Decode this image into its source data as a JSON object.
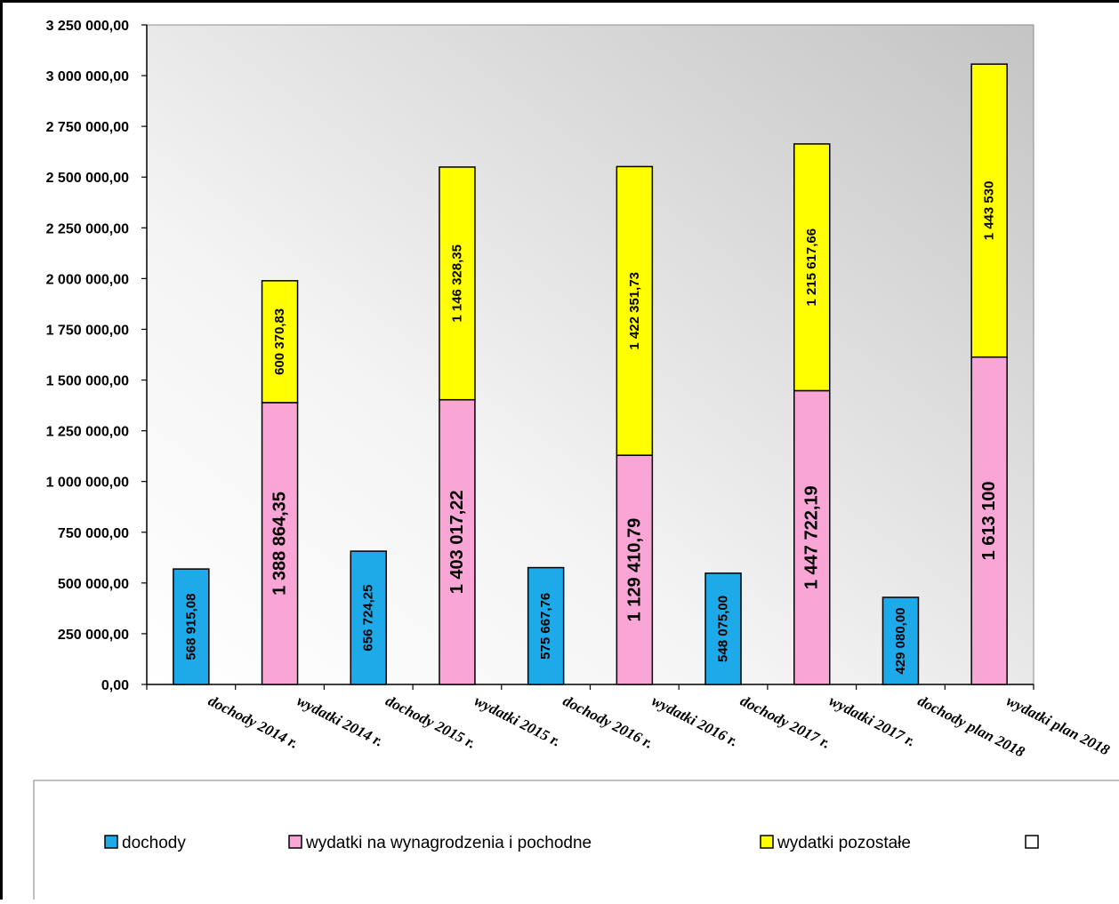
{
  "chart_data": {
    "type": "bar",
    "stacked": true,
    "categories": [
      "dochody 2014 r.",
      "wydatki 2014 r.",
      "dochody 2015 r.",
      "wydatki 2015 r.",
      "dochody 2016 r.",
      "wydatki 2016 r.",
      "dochody 2017 r.",
      "wydatki 2017 r.",
      "dochody plan 2018",
      "wydatki plan 2018"
    ],
    "series": [
      {
        "name": "dochody",
        "color": "#1EA9E8",
        "values": [
          568915.08,
          null,
          656724.25,
          null,
          575667.76,
          null,
          548075.0,
          null,
          429080.0,
          null
        ],
        "labels": [
          "568 915,08",
          "",
          "656 724,25",
          "",
          "575 667,76",
          "",
          "548 075,00",
          "",
          "429 080,00",
          ""
        ]
      },
      {
        "name": "wydatki na wynagrodzenia i pochodne",
        "color": "#F9A6D7",
        "values": [
          null,
          1388864.35,
          null,
          1403017.22,
          null,
          1129410.79,
          null,
          1447722.19,
          null,
          1613100
        ],
        "labels": [
          "",
          "1 388 864,35",
          "",
          "1 403 017,22",
          "",
          "1 129 410,79",
          "",
          "1 447 722,19",
          "",
          "1 613 100"
        ]
      },
      {
        "name": "wydatki pozostałe",
        "color": "#FFFF00",
        "values": [
          null,
          600370.83,
          null,
          1146328.35,
          null,
          1422351.73,
          null,
          1215617.66,
          null,
          1443530
        ],
        "labels": [
          "",
          "600 370,83",
          "",
          "1 146 328,35",
          "",
          "1 422 351,73",
          "",
          "1 215 617,66",
          "",
          "1 443 530"
        ]
      }
    ],
    "legend_extra_empty_entry": true,
    "ylim": [
      0,
      3250000
    ],
    "ytick_step": 250000,
    "ytick_labels": [
      "0,00",
      "250 000,00",
      "500 000,00",
      "750 000,00",
      "1 000 000,00",
      "1 250 000,00",
      "1 500 000,00",
      "1 750 000,00",
      "2 000 000,00",
      "2 250 000,00",
      "2 500 000,00",
      "2 750 000,00",
      "3 000 000,00",
      "3 250 000,00"
    ],
    "title": "",
    "xlabel": "",
    "ylabel": "",
    "grid": false,
    "legend_position": "bottom",
    "plot_background": "gradient white to grey"
  }
}
